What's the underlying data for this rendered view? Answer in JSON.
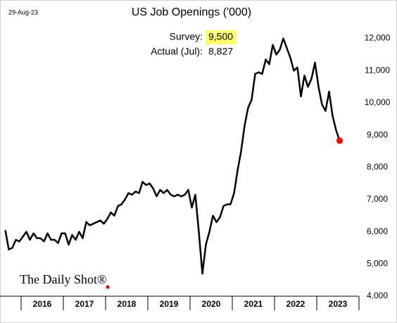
{
  "chart_data": {
    "type": "line",
    "title": "US Job Openings ('000)",
    "date": "29-Aug-23",
    "source": "The Daily Shot®",
    "annotations": {
      "survey_label": "Survey:",
      "survey_value": "9,500",
      "actual_label": "Actual (Jul):",
      "actual_value": "8,827"
    },
    "x": [
      2015.625,
      2015.708,
      2015.792,
      2015.875,
      2015.958,
      2016.042,
      2016.125,
      2016.208,
      2016.292,
      2016.375,
      2016.458,
      2016.542,
      2016.625,
      2016.708,
      2016.792,
      2016.875,
      2016.958,
      2017.042,
      2017.125,
      2017.208,
      2017.292,
      2017.375,
      2017.458,
      2017.542,
      2017.625,
      2017.708,
      2017.792,
      2017.875,
      2017.958,
      2018.042,
      2018.125,
      2018.208,
      2018.292,
      2018.375,
      2018.458,
      2018.542,
      2018.625,
      2018.708,
      2018.792,
      2018.875,
      2018.958,
      2019.042,
      2019.125,
      2019.208,
      2019.292,
      2019.375,
      2019.458,
      2019.542,
      2019.625,
      2019.708,
      2019.792,
      2019.875,
      2019.958,
      2020.042,
      2020.125,
      2020.208,
      2020.292,
      2020.375,
      2020.458,
      2020.542,
      2020.625,
      2020.708,
      2020.792,
      2020.875,
      2020.958,
      2021.042,
      2021.125,
      2021.208,
      2021.292,
      2021.375,
      2021.458,
      2021.542,
      2021.625,
      2021.708,
      2021.792,
      2021.875,
      2021.958,
      2022.042,
      2022.125,
      2022.208,
      2022.292,
      2022.375,
      2022.458,
      2022.542,
      2022.625,
      2022.708,
      2022.792,
      2022.875,
      2022.958,
      2023.042,
      2023.125,
      2023.208,
      2023.292,
      2023.375,
      2023.458,
      2023.542
    ],
    "series": [
      {
        "color": "#000000",
        "last_point_color": "#ff0000",
        "values": [
          6050,
          5450,
          5500,
          5750,
          5700,
          5850,
          6000,
          5750,
          5950,
          5800,
          5800,
          5700,
          5950,
          5750,
          5750,
          5650,
          5950,
          5950,
          5600,
          5900,
          5750,
          6000,
          5800,
          6300,
          6200,
          6250,
          6300,
          6350,
          6250,
          6400,
          6600,
          6500,
          6800,
          6850,
          7000,
          7200,
          7150,
          7250,
          7200,
          7550,
          7450,
          7500,
          7350,
          7100,
          7300,
          7200,
          7300,
          7150,
          7100,
          7150,
          7100,
          7150,
          7300,
          6750,
          7150,
          6000,
          4700,
          5600,
          6000,
          6500,
          6300,
          6450,
          6800,
          6850,
          6850,
          7200,
          7900,
          8500,
          9300,
          9850,
          10100,
          10900,
          10950,
          10900,
          11350,
          11200,
          11800,
          11500,
          11650,
          12000,
          11700,
          11400,
          11000,
          11100,
          10200,
          10850,
          10500,
          10750,
          11250,
          10500,
          9950,
          9750,
          10350,
          9600,
          9150,
          8827
        ]
      }
    ],
    "xlim": [
      2015.5,
      2024
    ],
    "xticks": [
      {
        "value": 2016.5,
        "label": "2016"
      },
      {
        "value": 2017.5,
        "label": "2017"
      },
      {
        "value": 2018.5,
        "label": "2018"
      },
      {
        "value": 2019.5,
        "label": "2019"
      },
      {
        "value": 2020.5,
        "label": "2020"
      },
      {
        "value": 2021.5,
        "label": "2021"
      },
      {
        "value": 2022.5,
        "label": "2022"
      },
      {
        "value": 2023.5,
        "label": "2023"
      }
    ],
    "ylim": [
      4000,
      12800
    ],
    "yticks": [
      {
        "value": 4000,
        "label": "4,000"
      },
      {
        "value": 5000,
        "label": "5,000"
      },
      {
        "value": 6000,
        "label": "6,000"
      },
      {
        "value": 7000,
        "label": "7,000"
      },
      {
        "value": 8000,
        "label": "8,000"
      },
      {
        "value": 9000,
        "label": "9,000"
      },
      {
        "value": 10000,
        "label": "10,000"
      },
      {
        "value": 11000,
        "label": "11,000"
      },
      {
        "value": 12000,
        "label": "12,000"
      }
    ]
  }
}
